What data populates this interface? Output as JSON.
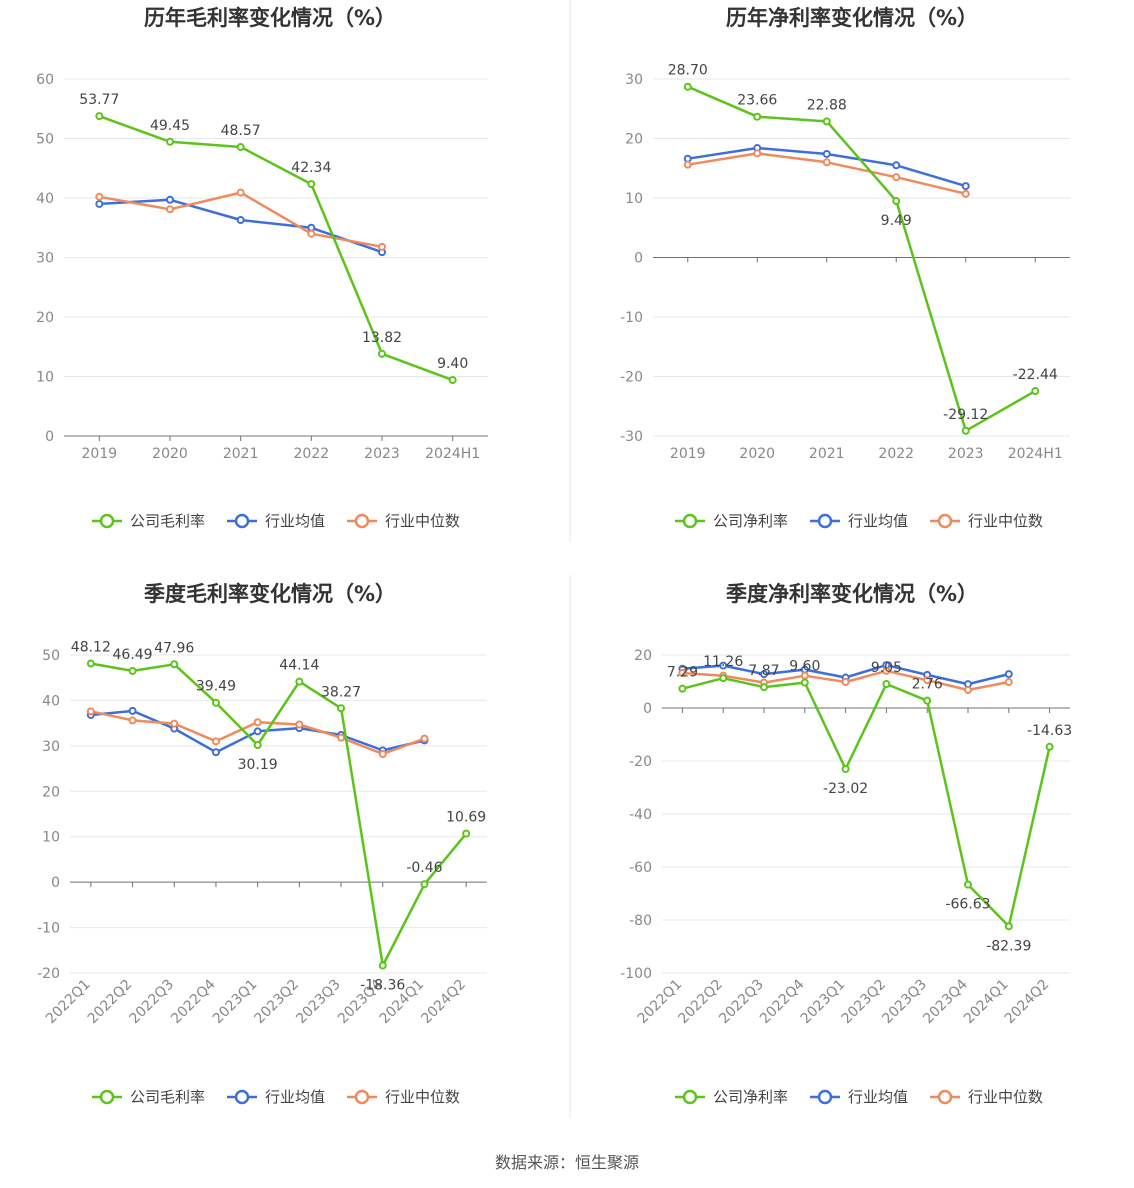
{
  "source": "数据来源：恒生聚源",
  "colors": {
    "company": "#5cc31a",
    "industry_avg": "#3d6fdb",
    "industry_median": "#f08a5d"
  },
  "chart_data": [
    {
      "type": "line",
      "title": "历年毛利率变化情况（%）",
      "categories": [
        "2019",
        "2020",
        "2021",
        "2022",
        "2023",
        "2024H1"
      ],
      "ylim": [
        0,
        60
      ],
      "yticks": [
        0,
        10,
        20,
        30,
        40,
        50,
        60
      ],
      "grid": true,
      "legend": "bottom-center",
      "series": [
        {
          "name": "公司毛利率",
          "key": "company",
          "labels": true,
          "values": [
            53.77,
            49.45,
            48.57,
            42.34,
            13.82,
            9.4
          ],
          "label_text": [
            "53.77",
            "49.45",
            "48.57",
            "42.34",
            "13.82",
            "9.40"
          ]
        },
        {
          "name": "行业均值",
          "key": "industry_avg",
          "labels": false,
          "values": [
            39.0,
            39.7,
            36.3,
            35.0,
            30.9,
            null
          ]
        },
        {
          "name": "行业中位数",
          "key": "industry_median",
          "labels": false,
          "values": [
            40.2,
            38.1,
            40.9,
            34.0,
            31.8,
            null
          ]
        }
      ]
    },
    {
      "type": "line",
      "title": "历年净利率变化情况（%）",
      "categories": [
        "2019",
        "2020",
        "2021",
        "2022",
        "2023",
        "2024H1"
      ],
      "ylim": [
        -30,
        30
      ],
      "yticks": [
        -30,
        -20,
        -10,
        0,
        10,
        20,
        30
      ],
      "grid": true,
      "legend": "bottom-center",
      "series": [
        {
          "name": "公司净利率",
          "key": "company",
          "labels": true,
          "values": [
            28.7,
            23.66,
            22.88,
            9.49,
            -29.12,
            -22.44
          ],
          "label_text": [
            "28.70",
            "23.66",
            "22.88",
            "9.49",
            "-29.12",
            "-22.44"
          ]
        },
        {
          "name": "行业均值",
          "key": "industry_avg",
          "labels": false,
          "values": [
            16.6,
            18.4,
            17.4,
            15.5,
            12.0,
            null
          ]
        },
        {
          "name": "行业中位数",
          "key": "industry_median",
          "labels": false,
          "values": [
            15.6,
            17.5,
            16.0,
            13.5,
            10.7,
            null
          ]
        }
      ]
    },
    {
      "type": "line",
      "title": "季度毛利率变化情况（%）",
      "categories": [
        "2022Q1",
        "2022Q2",
        "2022Q3",
        "2022Q4",
        "2023Q1",
        "2023Q2",
        "2023Q3",
        "2023Q4",
        "2024Q1",
        "2024Q2"
      ],
      "ylim": [
        -20,
        50
      ],
      "yticks": [
        -20,
        -10,
        0,
        10,
        20,
        30,
        40,
        50
      ],
      "grid": true,
      "legend": "bottom-center",
      "series": [
        {
          "name": "公司毛利率",
          "key": "company",
          "labels": true,
          "values": [
            48.12,
            46.49,
            47.96,
            39.49,
            30.19,
            44.14,
            38.27,
            -18.36,
            -0.46,
            10.69
          ],
          "label_text": [
            "48.12",
            "46.49",
            "47.96",
            "39.49",
            "30.19",
            "44.14",
            "38.27",
            "-18.36",
            "-0.46",
            "10.69"
          ]
        },
        {
          "name": "行业均值",
          "key": "industry_avg",
          "labels": false,
          "values": [
            36.8,
            37.7,
            33.8,
            28.6,
            33.2,
            33.9,
            32.4,
            29.0,
            31.2,
            null
          ]
        },
        {
          "name": "行业中位数",
          "key": "industry_median",
          "labels": false,
          "values": [
            37.6,
            35.6,
            34.9,
            31.0,
            35.2,
            34.7,
            31.8,
            28.2,
            31.6,
            null
          ]
        }
      ]
    },
    {
      "type": "line",
      "title": "季度净利率变化情况（%）",
      "categories": [
        "2022Q1",
        "2022Q2",
        "2022Q3",
        "2022Q4",
        "2023Q1",
        "2023Q2",
        "2023Q3",
        "2023Q4",
        "2024Q1",
        "2024Q2"
      ],
      "ylim": [
        -100,
        20
      ],
      "yticks": [
        -100,
        -80,
        -60,
        -40,
        -20,
        0,
        20
      ],
      "grid": true,
      "legend": "bottom-center",
      "series": [
        {
          "name": "公司净利率",
          "key": "company",
          "labels": true,
          "values": [
            7.29,
            11.26,
            7.87,
            9.6,
            -23.02,
            9.05,
            2.76,
            -66.63,
            -82.39,
            -14.63
          ],
          "label_text": [
            "7.29",
            "11.26",
            "7.87",
            "9.60",
            "-23.02",
            "9.05",
            "2.76",
            "-66.63",
            "-82.39",
            "-14.63"
          ]
        },
        {
          "name": "行业均值",
          "key": "industry_avg",
          "labels": false,
          "values": [
            14.8,
            16.0,
            12.8,
            14.5,
            11.5,
            16.2,
            12.5,
            9.0,
            12.8,
            null
          ]
        },
        {
          "name": "行业中位数",
          "key": "industry_median",
          "labels": false,
          "values": [
            13.2,
            12.2,
            9.6,
            12.2,
            9.8,
            14.0,
            10.5,
            6.8,
            9.8,
            null
          ]
        }
      ]
    }
  ]
}
